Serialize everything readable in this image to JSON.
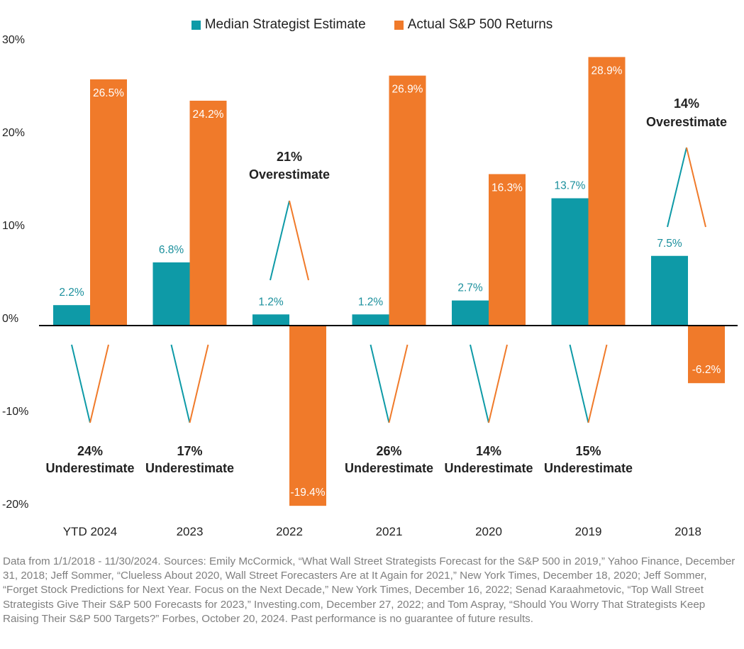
{
  "chart_data": {
    "type": "bar",
    "categories": [
      "YTD 2024",
      "2023",
      "2022",
      "2021",
      "2020",
      "2019",
      "2018"
    ],
    "series": [
      {
        "name": "Median Strategist Estimate",
        "color": "#0e9aa7",
        "values": [
          2.2,
          6.8,
          1.2,
          1.2,
          2.7,
          13.7,
          7.5
        ],
        "labels": [
          "2.2%",
          "6.8%",
          "1.2%",
          "1.2%",
          "2.7%",
          "13.7%",
          "7.5%"
        ]
      },
      {
        "name": "Actual S&P 500 Returns",
        "color": "#f07a2a",
        "values": [
          26.5,
          24.2,
          -19.4,
          26.9,
          16.3,
          28.9,
          -6.2
        ],
        "labels": [
          "26.5%",
          "24.2%",
          "-19.4%",
          "26.9%",
          "16.3%",
          "28.9%",
          "-6.2%"
        ]
      }
    ],
    "ylim": [
      -20,
      30
    ],
    "yticks": [
      {
        "value": 30,
        "label": "30%"
      },
      {
        "value": 20,
        "label": "20%"
      },
      {
        "value": 10,
        "label": "10%"
      },
      {
        "value": 0,
        "label": "0%"
      },
      {
        "value": -10,
        "label": "-10%"
      },
      {
        "value": -20,
        "label": "-20%"
      }
    ],
    "legend_position": "top",
    "grid": false,
    "annotations": [
      {
        "category": "YTD 2024",
        "type": "under",
        "line1": "24%",
        "line2": "Underestimate"
      },
      {
        "category": "2023",
        "type": "under",
        "line1": "17%",
        "line2": "Underestimate"
      },
      {
        "category": "2022",
        "type": "over",
        "line1": "21%",
        "line2": "Overestimate"
      },
      {
        "category": "2021",
        "type": "under",
        "line1": "26%",
        "line2": "Underestimate"
      },
      {
        "category": "2020",
        "type": "under",
        "line1": "14%",
        "line2": "Underestimate"
      },
      {
        "category": "2019",
        "type": "under",
        "line1": "15%",
        "line2": "Underestimate"
      },
      {
        "category": "2018",
        "type": "over",
        "line1": "14%",
        "line2": "Overestimate"
      }
    ]
  },
  "legend": {
    "estimate_label": "Median Strategist Estimate",
    "actual_label": "Actual S&P 500 Returns"
  },
  "footnote": "Data from 1/1/2018 - 11/30/2024. Sources: Emily McCormick, “What Wall Street Strategists Forecast for the S&P 500 in 2019,” Yahoo Finance, December 31, 2018; Jeff Sommer, “Clueless About 2020, Wall Street Forecasters Are at It Again for 2021,” New York Times, December 18, 2020; Jeff Sommer, “Forget Stock Predictions for Next Year. Focus on the Next Decade,” New York Times, December 16, 2022; Senad Karaahmetovic, “Top Wall Street Strategists Give Their S&P 500 Forecasts for 2023,” Investing.com, December 27, 2022; and Tom Aspray, “Should You Worry That Strategists Keep Raising Their S&P 500 Targets?” Forbes, October 20, 2024. Past performance is no guarantee of future results."
}
